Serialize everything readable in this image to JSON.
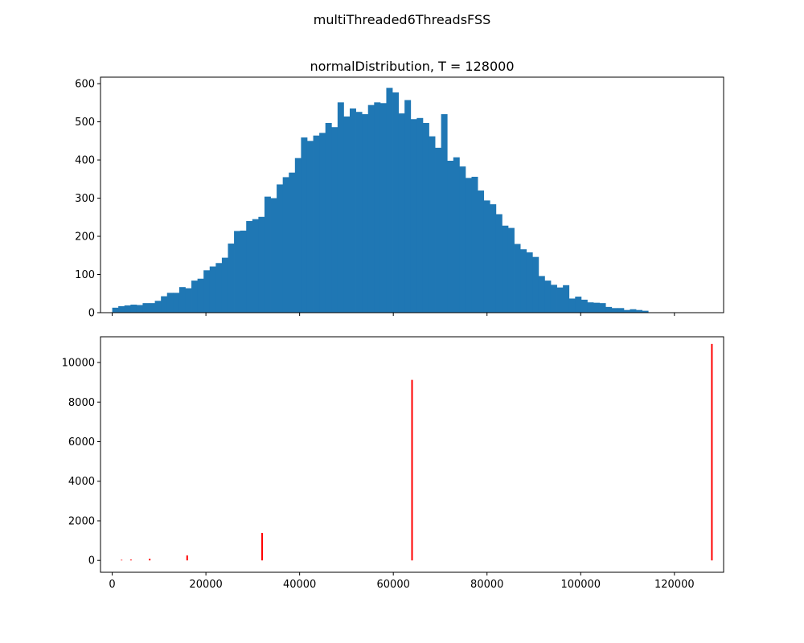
{
  "suptitle": "multiThreaded6ThreadsFSS",
  "chart_data": [
    {
      "type": "bar",
      "title": "normalDistribution, T = 128000",
      "xlabel": "",
      "ylabel": "",
      "xlim": [
        -2500,
        130500
      ],
      "ylim": [
        0,
        617
      ],
      "yticks": [
        0,
        100,
        200,
        300,
        400,
        500,
        600
      ],
      "xticks": [
        0,
        20000,
        40000,
        60000,
        80000,
        100000,
        120000
      ],
      "show_xtick_labels": false,
      "grid": false,
      "color": "#1f77b4",
      "bin_start": 0,
      "bin_width": 1300,
      "values": [
        13,
        17,
        19,
        21,
        20,
        25,
        25,
        31,
        43,
        52,
        52,
        67,
        64,
        84,
        89,
        111,
        121,
        130,
        144,
        181,
        214,
        215,
        240,
        245,
        251,
        304,
        300,
        336,
        355,
        367,
        405,
        459,
        450,
        464,
        471,
        497,
        486,
        551,
        514,
        535,
        526,
        520,
        544,
        551,
        549,
        589,
        577,
        522,
        557,
        507,
        510,
        497,
        462,
        432,
        520,
        398,
        407,
        383,
        353,
        356,
        320,
        294,
        284,
        258,
        228,
        222,
        180,
        166,
        158,
        146,
        96,
        84,
        73,
        66,
        72,
        37,
        42,
        34,
        27,
        26,
        25,
        15,
        12,
        12,
        7,
        9,
        7,
        5
      ]
    },
    {
      "type": "bar",
      "title": "",
      "xlabel": "",
      "ylabel": "",
      "xlim": [
        -2500,
        130500
      ],
      "ylim": [
        -600,
        11300
      ],
      "yticks": [
        0,
        2000,
        4000,
        6000,
        8000,
        10000
      ],
      "xticks": [
        0,
        20000,
        40000,
        60000,
        80000,
        100000,
        120000
      ],
      "xtick_labels": [
        "0",
        "20000",
        "40000",
        "60000",
        "80000",
        "100000",
        "120000"
      ],
      "grid": false,
      "color": "#ff0000",
      "style": "vlines",
      "x": [
        2000,
        4000,
        8000,
        16000,
        32000,
        64000,
        128000
      ],
      "values": [
        30,
        40,
        80,
        250,
        1390,
        9120,
        10940
      ]
    }
  ]
}
